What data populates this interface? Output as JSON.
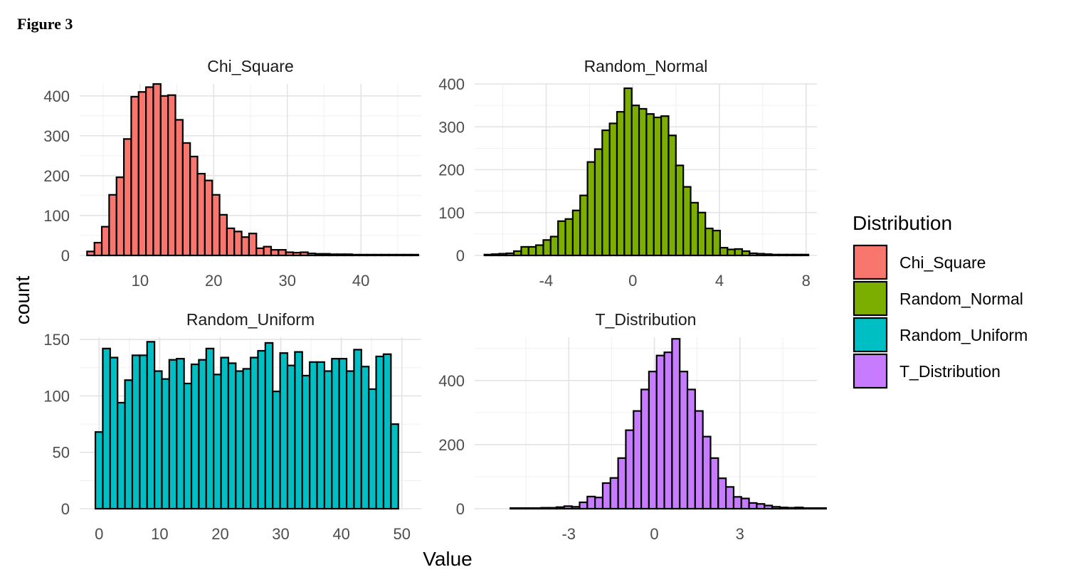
{
  "figure_label": "Figure 3",
  "chart_data": {
    "type": "bar",
    "subtype": "faceted-histogram",
    "xlabel": "Value",
    "ylabel": "count",
    "grid": true,
    "legend": {
      "title": "Distribution",
      "position": "right",
      "items": [
        {
          "name": "Chi_Square",
          "color": "#F8766D"
        },
        {
          "name": "Random_Normal",
          "color": "#7CAE00"
        },
        {
          "name": "Random_Uniform",
          "color": "#00BFC4"
        },
        {
          "name": "T_Distribution",
          "color": "#C77CFF"
        }
      ]
    },
    "panels": [
      {
        "title": "Chi_Square",
        "color": "#F8766D",
        "xlim": [
          1.8,
          48.2
        ],
        "ylim": [
          0,
          430
        ],
        "xticks": [
          10,
          20,
          30,
          40
        ],
        "xtick_labels": [
          "10",
          "20",
          "30",
          "40"
        ],
        "xminor": [
          5,
          15,
          25,
          35,
          45
        ],
        "yticks": [
          0,
          100,
          200,
          300,
          400
        ],
        "ytick_labels": [
          "0",
          "100",
          "200",
          "300",
          "400"
        ],
        "yminor": [
          50,
          150,
          250,
          350
        ],
        "bin_start": 2.8,
        "bin_width": 1.0,
        "counts": [
          10,
          32,
          72,
          152,
          196,
          292,
          398,
          410,
          422,
          430,
          400,
          402,
          340,
          282,
          248,
          205,
          188,
          152,
          102,
          68,
          60,
          46,
          55,
          18,
          22,
          14,
          14,
          8,
          7,
          8,
          5,
          4,
          4,
          3,
          3,
          3,
          2,
          2,
          2,
          2,
          2,
          2,
          2,
          2,
          2
        ]
      },
      {
        "title": "Random_Normal",
        "color": "#7CAE00",
        "xlim": [
          -7.3,
          8.5
        ],
        "ylim": [
          0,
          400
        ],
        "xticks": [
          -4,
          0,
          4,
          8
        ],
        "xtick_labels": [
          "-4",
          "0",
          "4",
          "8"
        ],
        "xminor": [
          -6,
          -2,
          2,
          6
        ],
        "yticks": [
          0,
          100,
          200,
          300,
          400
        ],
        "ytick_labels": [
          "0",
          "100",
          "200",
          "300",
          "400"
        ],
        "yminor": [
          50,
          150,
          250,
          350
        ],
        "bin_start": -6.85,
        "bin_width": 0.34,
        "counts": [
          2,
          3,
          4,
          5,
          10,
          20,
          20,
          24,
          36,
          44,
          80,
          85,
          105,
          140,
          218,
          248,
          292,
          308,
          335,
          390,
          350,
          342,
          330,
          322,
          325,
          280,
          210,
          160,
          123,
          100,
          63,
          58,
          18,
          14,
          15,
          10,
          5,
          4,
          3,
          2,
          2,
          2,
          2,
          2
        ]
      },
      {
        "title": "Random_Uniform",
        "color": "#00BFC4",
        "xlim": [
          -3.2,
          53.2
        ],
        "ylim": [
          0,
          152
        ],
        "xticks": [
          0,
          10,
          20,
          30,
          40,
          50
        ],
        "xtick_labels": [
          "0",
          "10",
          "20",
          "30",
          "40",
          "50"
        ],
        "xminor": [
          5,
          15,
          25,
          35,
          45
        ],
        "yticks": [
          0,
          50,
          100,
          150
        ],
        "ytick_labels": [
          "0",
          "50",
          "100",
          "150"
        ],
        "yminor": [
          25,
          75,
          125
        ],
        "bin_start": -0.61,
        "bin_width": 1.22,
        "counts": [
          68,
          142,
          134,
          94,
          114,
          136,
          136,
          148,
          122,
          115,
          132,
          133,
          111,
          128,
          132,
          142,
          119,
          134,
          129,
          122,
          124,
          134,
          140,
          147,
          104,
          138,
          127,
          139,
          118,
          130,
          130,
          122,
          133,
          133,
          122,
          141,
          126,
          106,
          135,
          137,
          75
        ]
      },
      {
        "title": "T_Distribution",
        "color": "#C77CFF",
        "xlim": [
          -6.3,
          5.7
        ],
        "ylim": [
          0,
          535
        ],
        "xticks": [
          -3,
          0,
          3
        ],
        "xtick_labels": [
          "-3",
          "0",
          "3"
        ],
        "xminor": [
          -4.5,
          -1.5,
          1.5,
          4.5
        ],
        "yticks": [
          0,
          200,
          400
        ],
        "ytick_labels": [
          "0",
          "200",
          "400"
        ],
        "yminor": [
          100,
          300,
          500
        ],
        "bin_start": -5.05,
        "bin_width": 0.27,
        "counts": [
          2,
          2,
          2,
          2,
          3,
          3,
          5,
          8,
          6,
          20,
          38,
          35,
          80,
          96,
          158,
          245,
          305,
          372,
          428,
          478,
          488,
          530,
          428,
          372,
          305,
          225,
          158,
          95,
          68,
          37,
          32,
          18,
          15,
          10,
          6,
          4,
          3,
          4,
          2,
          2,
          2
        ]
      }
    ]
  }
}
